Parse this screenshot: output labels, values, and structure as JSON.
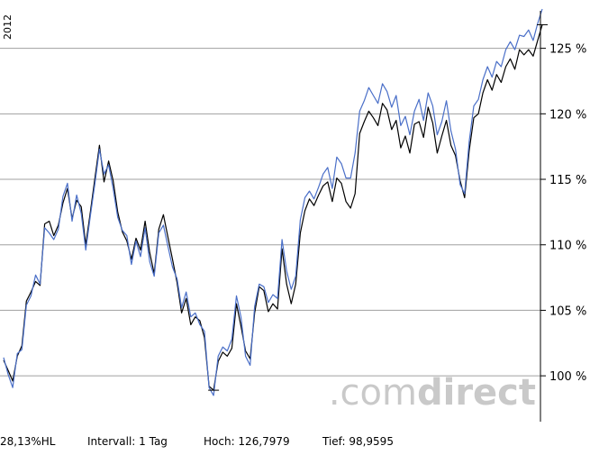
{
  "chart_data": {
    "type": "line",
    "year_label": "2012",
    "y_unit": "%",
    "ylim": [
      96.5,
      128
    ],
    "y_ticks": [
      100,
      105,
      110,
      115,
      120,
      125
    ],
    "y_tick_labels": [
      "100 %",
      "105 %",
      "110 %",
      "115 %",
      "120 %",
      "125 %"
    ],
    "grid": true,
    "series": [
      {
        "color": "#000000",
        "values": [
          101.2,
          100.4,
          99.6,
          101.5,
          102.3,
          105.7,
          106.4,
          107.2,
          106.9,
          111.6,
          111.8,
          110.7,
          111.5,
          113.2,
          114.3,
          112.0,
          113.4,
          112.9,
          110.0,
          112.5,
          115.1,
          117.6,
          114.8,
          116.4,
          114.9,
          112.5,
          111.0,
          110.3,
          108.9,
          110.5,
          109.6,
          111.8,
          109.4,
          107.8,
          111.2,
          112.3,
          110.6,
          108.9,
          107.1,
          104.8,
          105.9,
          103.9,
          104.5,
          104.2,
          102.9,
          99.2,
          98.9,
          101.1,
          101.8,
          101.5,
          102.1,
          105.5,
          103.8,
          101.9,
          101.3,
          104.8,
          106.8,
          106.5,
          104.9,
          105.5,
          105.1,
          109.7,
          107.0,
          105.5,
          107.0,
          110.9,
          112.6,
          113.5,
          113.0,
          113.8,
          114.5,
          114.8,
          113.3,
          115.1,
          114.7,
          113.3,
          112.8,
          113.9,
          118.5,
          119.4,
          120.2,
          119.7,
          119.1,
          120.8,
          120.3,
          118.8,
          119.5,
          117.4,
          118.3,
          117.0,
          119.2,
          119.4,
          118.2,
          120.5,
          119.3,
          117.0,
          118.3,
          119.5,
          117.6,
          116.8,
          114.9,
          113.6,
          117.2,
          119.7,
          120.0,
          121.6,
          122.6,
          121.8,
          123.0,
          122.4,
          123.6,
          124.2,
          123.4,
          124.9,
          124.5,
          124.9,
          124.4,
          125.6,
          126.8
        ]
      },
      {
        "color": "#4a6fc8",
        "values": [
          101.4,
          100.1,
          99.1,
          101.7,
          102.0,
          105.4,
          106.1,
          107.7,
          107.0,
          111.3,
          110.9,
          110.4,
          111.2,
          113.7,
          114.7,
          111.8,
          113.8,
          112.4,
          109.6,
          112.2,
          114.7,
          117.3,
          115.4,
          116.1,
          114.3,
          112.1,
          111.1,
          110.7,
          108.5,
          110.3,
          109.1,
          111.3,
          108.7,
          107.6,
          110.9,
          111.5,
          109.9,
          108.3,
          107.4,
          105.2,
          106.4,
          104.5,
          104.8,
          103.9,
          103.4,
          99.1,
          98.5,
          101.5,
          102.2,
          101.9,
          102.8,
          106.1,
          104.5,
          101.5,
          100.8,
          105.3,
          107.0,
          106.8,
          105.6,
          106.2,
          105.9,
          110.4,
          108.0,
          106.6,
          107.6,
          111.9,
          113.6,
          114.1,
          113.5,
          114.4,
          115.4,
          115.9,
          114.3,
          116.7,
          116.2,
          115.1,
          115.1,
          117.0,
          120.2,
          121.0,
          122.0,
          121.4,
          120.8,
          122.3,
          121.7,
          120.5,
          121.4,
          119.1,
          119.8,
          118.4,
          120.2,
          121.1,
          119.5,
          121.6,
          120.6,
          118.4,
          119.4,
          121.0,
          118.7,
          117.3,
          114.6,
          113.9,
          117.9,
          120.6,
          121.1,
          122.6,
          123.6,
          122.8,
          124.0,
          123.6,
          124.9,
          125.5,
          124.9,
          126.0,
          125.9,
          126.4,
          125.6,
          126.9,
          128.0
        ]
      }
    ]
  },
  "watermark": {
    "light": ".com",
    "bold": "direct"
  },
  "footer": {
    "change": "28,13%HL",
    "interval": "Intervall: 1 Tag",
    "high": "Hoch: 126,7979",
    "low": "Tief: 98,9595"
  }
}
